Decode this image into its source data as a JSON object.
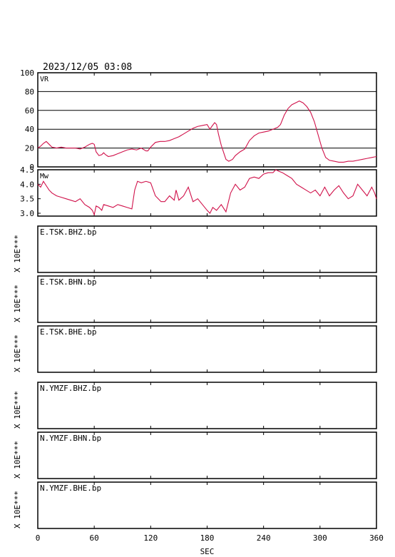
{
  "header": {
    "timestamp": "2023/12/05 03:08"
  },
  "colors": {
    "trace": "#d0114a",
    "frame": "#000000",
    "background": "#ffffff"
  },
  "chart_data": [
    {
      "type": "line",
      "panel": "VR",
      "ylim": [
        0,
        100
      ],
      "yticks": [
        "100",
        "80",
        "60",
        "40",
        "20",
        "0"
      ],
      "grid": true,
      "series": [
        {
          "x": [
            0,
            3,
            6,
            9,
            12,
            15,
            20,
            25,
            30,
            35,
            40,
            45,
            50,
            55,
            58,
            60,
            62,
            65,
            68,
            70,
            72,
            75,
            80,
            85,
            90,
            95,
            100,
            105,
            110,
            115,
            117,
            120,
            125,
            130,
            135,
            140,
            145,
            150,
            155,
            160,
            165,
            170,
            175,
            180,
            183,
            185,
            188,
            190,
            192,
            195,
            198,
            200,
            203,
            207,
            210,
            215,
            220,
            225,
            230,
            235,
            240,
            245,
            250,
            255,
            258,
            262,
            266,
            270,
            274,
            278,
            282,
            286,
            290,
            294,
            298,
            302,
            306,
            310,
            315,
            320,
            325,
            330,
            335,
            340,
            345,
            350,
            355,
            360
          ],
          "y": [
            20,
            22,
            25,
            27,
            24,
            21,
            20,
            21,
            20,
            20,
            20,
            19,
            21,
            24,
            25,
            24,
            16,
            12,
            13,
            15,
            13,
            11,
            12,
            14,
            16,
            18,
            19,
            18,
            20,
            17,
            17,
            21,
            26,
            27,
            27,
            28,
            30,
            32,
            35,
            38,
            41,
            43,
            44,
            45,
            40,
            43,
            47,
            45,
            35,
            23,
            14,
            8,
            6,
            8,
            12,
            16,
            19,
            28,
            33,
            36,
            37,
            38,
            40,
            42,
            45,
            55,
            62,
            66,
            68,
            70,
            68,
            64,
            58,
            48,
            34,
            20,
            10,
            7,
            6,
            5,
            5,
            6,
            6,
            7,
            8,
            9,
            10,
            11
          ]
        }
      ]
    },
    {
      "type": "line",
      "panel": "Mw",
      "ylim": [
        2.9,
        4.5
      ],
      "yticks": [
        "4.5",
        "4.0",
        "3.5",
        "3.0"
      ],
      "grid": false,
      "series": [
        {
          "x": [
            0,
            3,
            6,
            9,
            12,
            15,
            20,
            25,
            30,
            35,
            40,
            45,
            50,
            55,
            58,
            60,
            62,
            65,
            68,
            70,
            75,
            80,
            85,
            90,
            95,
            100,
            103,
            106,
            110,
            115,
            120,
            125,
            128,
            131,
            135,
            140,
            145,
            147,
            150,
            155,
            160,
            165,
            170,
            175,
            180,
            183,
            186,
            190,
            195,
            200,
            205,
            210,
            215,
            220,
            225,
            230,
            235,
            240,
            245,
            250,
            253,
            256,
            260,
            265,
            270,
            275,
            280,
            285,
            290,
            295,
            300,
            305,
            310,
            315,
            320,
            325,
            330,
            335,
            340,
            345,
            350,
            355,
            358,
            360
          ],
          "y": [
            4.0,
            3.9,
            4.1,
            3.95,
            3.8,
            3.7,
            3.6,
            3.55,
            3.5,
            3.45,
            3.4,
            3.5,
            3.3,
            3.2,
            3.1,
            2.95,
            3.25,
            3.2,
            3.1,
            3.3,
            3.25,
            3.2,
            3.3,
            3.25,
            3.2,
            3.15,
            3.8,
            4.1,
            4.05,
            4.1,
            4.05,
            3.6,
            3.5,
            3.4,
            3.4,
            3.6,
            3.45,
            3.8,
            3.45,
            3.6,
            3.9,
            3.4,
            3.5,
            3.3,
            3.1,
            3.0,
            3.2,
            3.1,
            3.3,
            3.05,
            3.7,
            4.0,
            3.8,
            3.9,
            4.2,
            4.25,
            4.2,
            4.35,
            4.4,
            4.4,
            4.5,
            4.45,
            4.4,
            4.3,
            4.2,
            4.0,
            3.9,
            3.8,
            3.7,
            3.8,
            3.6,
            3.9,
            3.6,
            3.8,
            3.95,
            3.7,
            3.5,
            3.6,
            4.0,
            3.8,
            3.6,
            3.9,
            3.7,
            3.5
          ]
        }
      ]
    }
  ],
  "waveforms": [
    {
      "label": "E.TSK.BHZ.bp",
      "ylabel": "X 10E***"
    },
    {
      "label": "E.TSK.BHN.bp",
      "ylabel": "X 10E***"
    },
    {
      "label": "E.TSK.BHE.bp",
      "ylabel": "X 10E***"
    },
    {
      "label": "N.YMZF.BHZ.bp",
      "ylabel": "X 10E***"
    },
    {
      "label": "N.YMZF.BHN.bp",
      "ylabel": "X 10E***"
    },
    {
      "label": "N.YMZF.BHE.bp",
      "ylabel": "X 10E***"
    }
  ],
  "x_axis": {
    "xlim": [
      0,
      360
    ],
    "ticks": [
      0,
      60,
      120,
      180,
      240,
      300,
      360
    ],
    "label": "SEC"
  }
}
